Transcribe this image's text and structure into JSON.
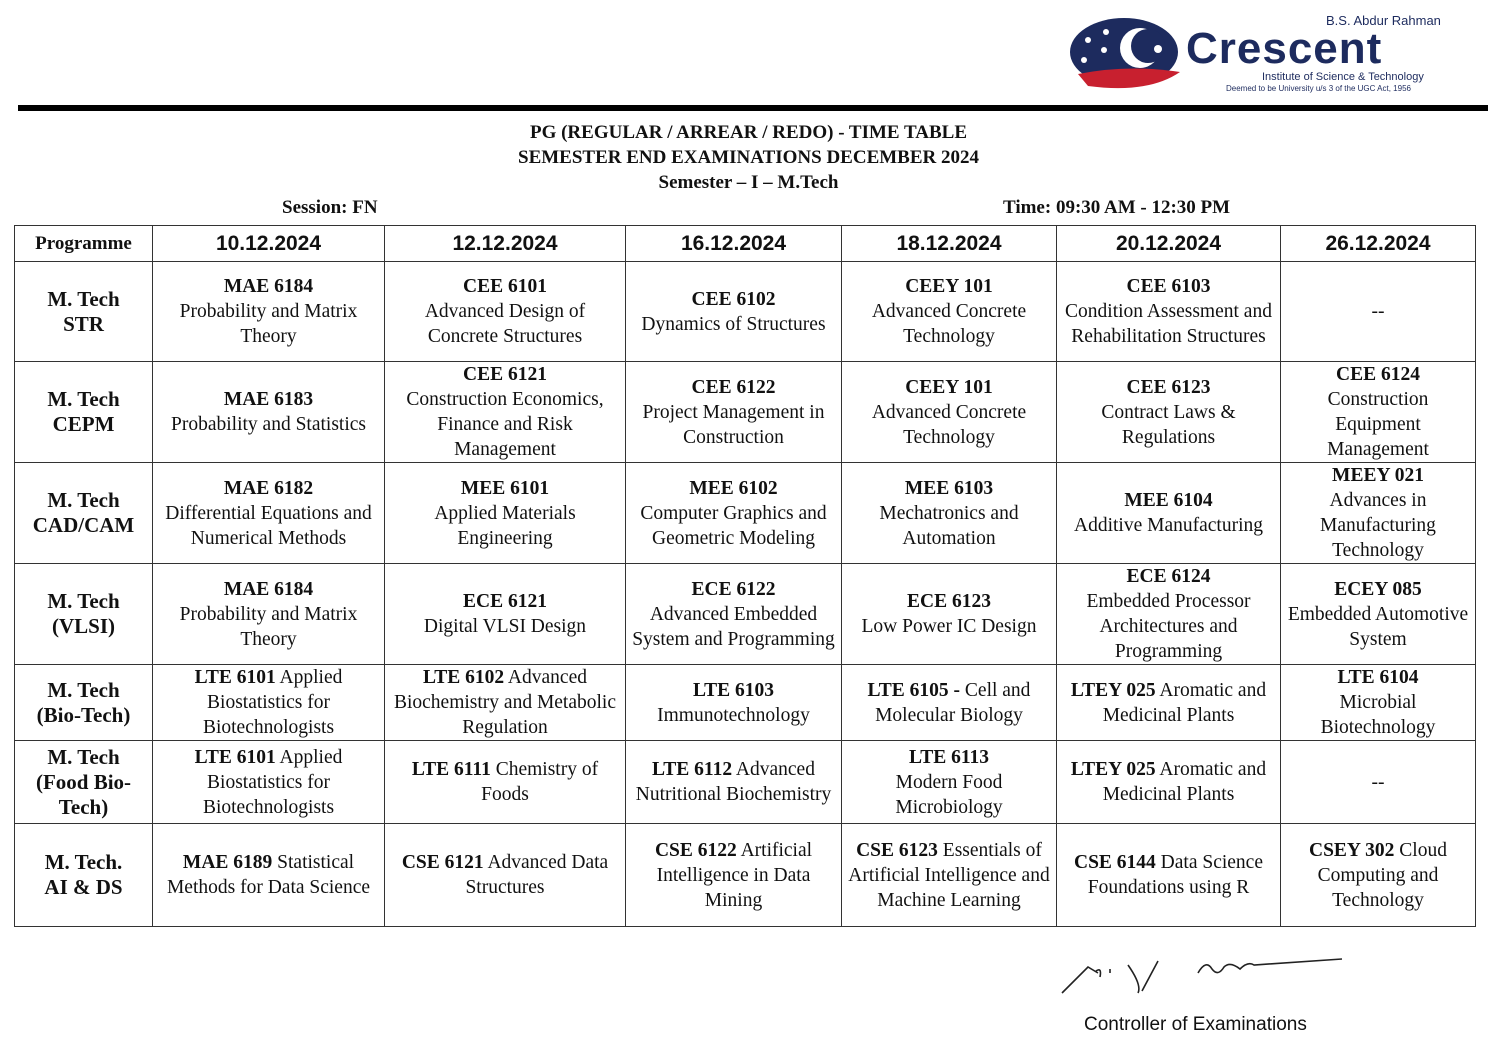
{
  "logo": {
    "top": "B.S. Abdur Rahman",
    "main": "Crescent",
    "sub": "Institute of Science & Technology",
    "sub2": "Deemed to be University u/s 3 of the UGC Act, 1956",
    "colors": {
      "navy": "#1d2b5e",
      "red": "#c8202f"
    }
  },
  "header": {
    "line1": "PG (REGULAR / ARREAR / REDO) - TIME TABLE",
    "line2": "SEMESTER END EXAMINATIONS DECEMBER 2024",
    "line3": "Semester – I – M.Tech",
    "session": "Session: FN",
    "time": "Time:  09:30 AM - 12:30 PM"
  },
  "table": {
    "columns": [
      "Programme",
      "10.12.2024",
      "12.12.2024",
      "16.12.2024",
      "18.12.2024",
      "20.12.2024",
      "26.12.2024"
    ],
    "rows": [
      {
        "programme": [
          "M. Tech",
          "STR"
        ],
        "cells": [
          {
            "code": "MAE 6184",
            "title": "Probability and Matrix Theory"
          },
          {
            "code": "CEE 6101",
            "title": "Advanced Design of Concrete Structures"
          },
          {
            "code": "CEE 6102",
            "title": "Dynamics of Structures"
          },
          {
            "code": "CEEY 101",
            "title": "Advanced Concrete Technology"
          },
          {
            "code": "CEE 6103",
            "title": "Condition Assessment and Rehabilitation Structures"
          },
          {
            "code": "",
            "title": "--"
          }
        ]
      },
      {
        "programme": [
          "M. Tech",
          "CEPM"
        ],
        "cells": [
          {
            "code": "MAE 6183",
            "title": "Probability and Statistics"
          },
          {
            "code": "CEE 6121",
            "title": "Construction Economics, Finance and Risk Management"
          },
          {
            "code": "CEE 6122",
            "title": "Project Management in Construction"
          },
          {
            "code": "CEEY 101",
            "title": "Advanced Concrete Technology"
          },
          {
            "code": "CEE 6123",
            "title": "Contract Laws & Regulations"
          },
          {
            "code": "CEE 6124",
            "title": "Construction Equipment Management"
          }
        ]
      },
      {
        "programme": [
          "M. Tech",
          "CAD/CAM"
        ],
        "cells": [
          {
            "code": "MAE 6182",
            "title": "Differential Equations and Numerical Methods"
          },
          {
            "code": "MEE 6101",
            "title": "Applied Materials Engineering"
          },
          {
            "code": "MEE 6102",
            "title": "Computer Graphics and Geometric Modeling"
          },
          {
            "code": "MEE 6103",
            "title": "Mechatronics and Automation"
          },
          {
            "code": "MEE 6104",
            "title": "Additive Manufacturing"
          },
          {
            "code": "MEEY 021",
            "title": "Advances in Manufacturing Technology"
          }
        ]
      },
      {
        "programme": [
          "M. Tech",
          "(VLSI)"
        ],
        "cells": [
          {
            "code": "MAE 6184",
            "title": "Probability and Matrix Theory"
          },
          {
            "code": "ECE 6121",
            "title": "Digital VLSI Design"
          },
          {
            "code": "ECE 6122",
            "title": "Advanced Embedded System and Programming"
          },
          {
            "code": "ECE 6123",
            "title": "Low Power IC Design"
          },
          {
            "code": "ECE 6124",
            "title": "Embedded Processor Architectures and Programming"
          },
          {
            "code": "ECEY 085",
            "title": "Embedded Automotive System"
          }
        ]
      },
      {
        "programme": [
          "M. Tech",
          "(Bio-Tech)"
        ],
        "cells": [
          {
            "code": "LTE 6101",
            "title": "Applied Biostatistics for Biotechnologists"
          },
          {
            "code": "LTE 6102",
            "title": "Advanced Biochemistry and Metabolic Regulation"
          },
          {
            "code": "LTE 6103",
            "title": "Immunotechnology"
          },
          {
            "code": "LTE 6105 -",
            "title": "Cell and Molecular Biology"
          },
          {
            "code": "LTEY 025",
            "title": "Aromatic and Medicinal Plants"
          },
          {
            "code": "LTE 6104",
            "title": "Microbial Biotechnology"
          }
        ]
      },
      {
        "programme": [
          "M. Tech",
          "(Food Bio-",
          "Tech)"
        ],
        "cells": [
          {
            "code": "LTE 6101",
            "title": "Applied Biostatistics for Biotechnologists"
          },
          {
            "code": "LTE 6111",
            "title": "Chemistry of Foods"
          },
          {
            "code": "LTE 6112",
            "title": "Advanced Nutritional Biochemistry"
          },
          {
            "code": "LTE 6113",
            "title": "Modern Food Microbiology"
          },
          {
            "code": "LTEY 025",
            "title": "Aromatic and Medicinal Plants"
          },
          {
            "code": "",
            "title": "--"
          }
        ]
      },
      {
        "programme": [
          "M. Tech.",
          "AI & DS"
        ],
        "cells": [
          {
            "code": "MAE 6189",
            "title": "Statistical Methods for Data Science"
          },
          {
            "code": "CSE 6121",
            "title": "Advanced Data Structures"
          },
          {
            "code": "CSE 6122",
            "title": "Artificial Intelligence in Data Mining"
          },
          {
            "code": "CSE 6123",
            "title": "Essentials of Artificial Intelligence and Machine Learning"
          },
          {
            "code": "CSE 6144",
            "title": "Data Science Foundations using R"
          },
          {
            "code": "CSEY 302",
            "title": "Cloud Computing and Technology"
          }
        ]
      }
    ]
  },
  "footer": {
    "signatory": "Controller of Examinations"
  }
}
